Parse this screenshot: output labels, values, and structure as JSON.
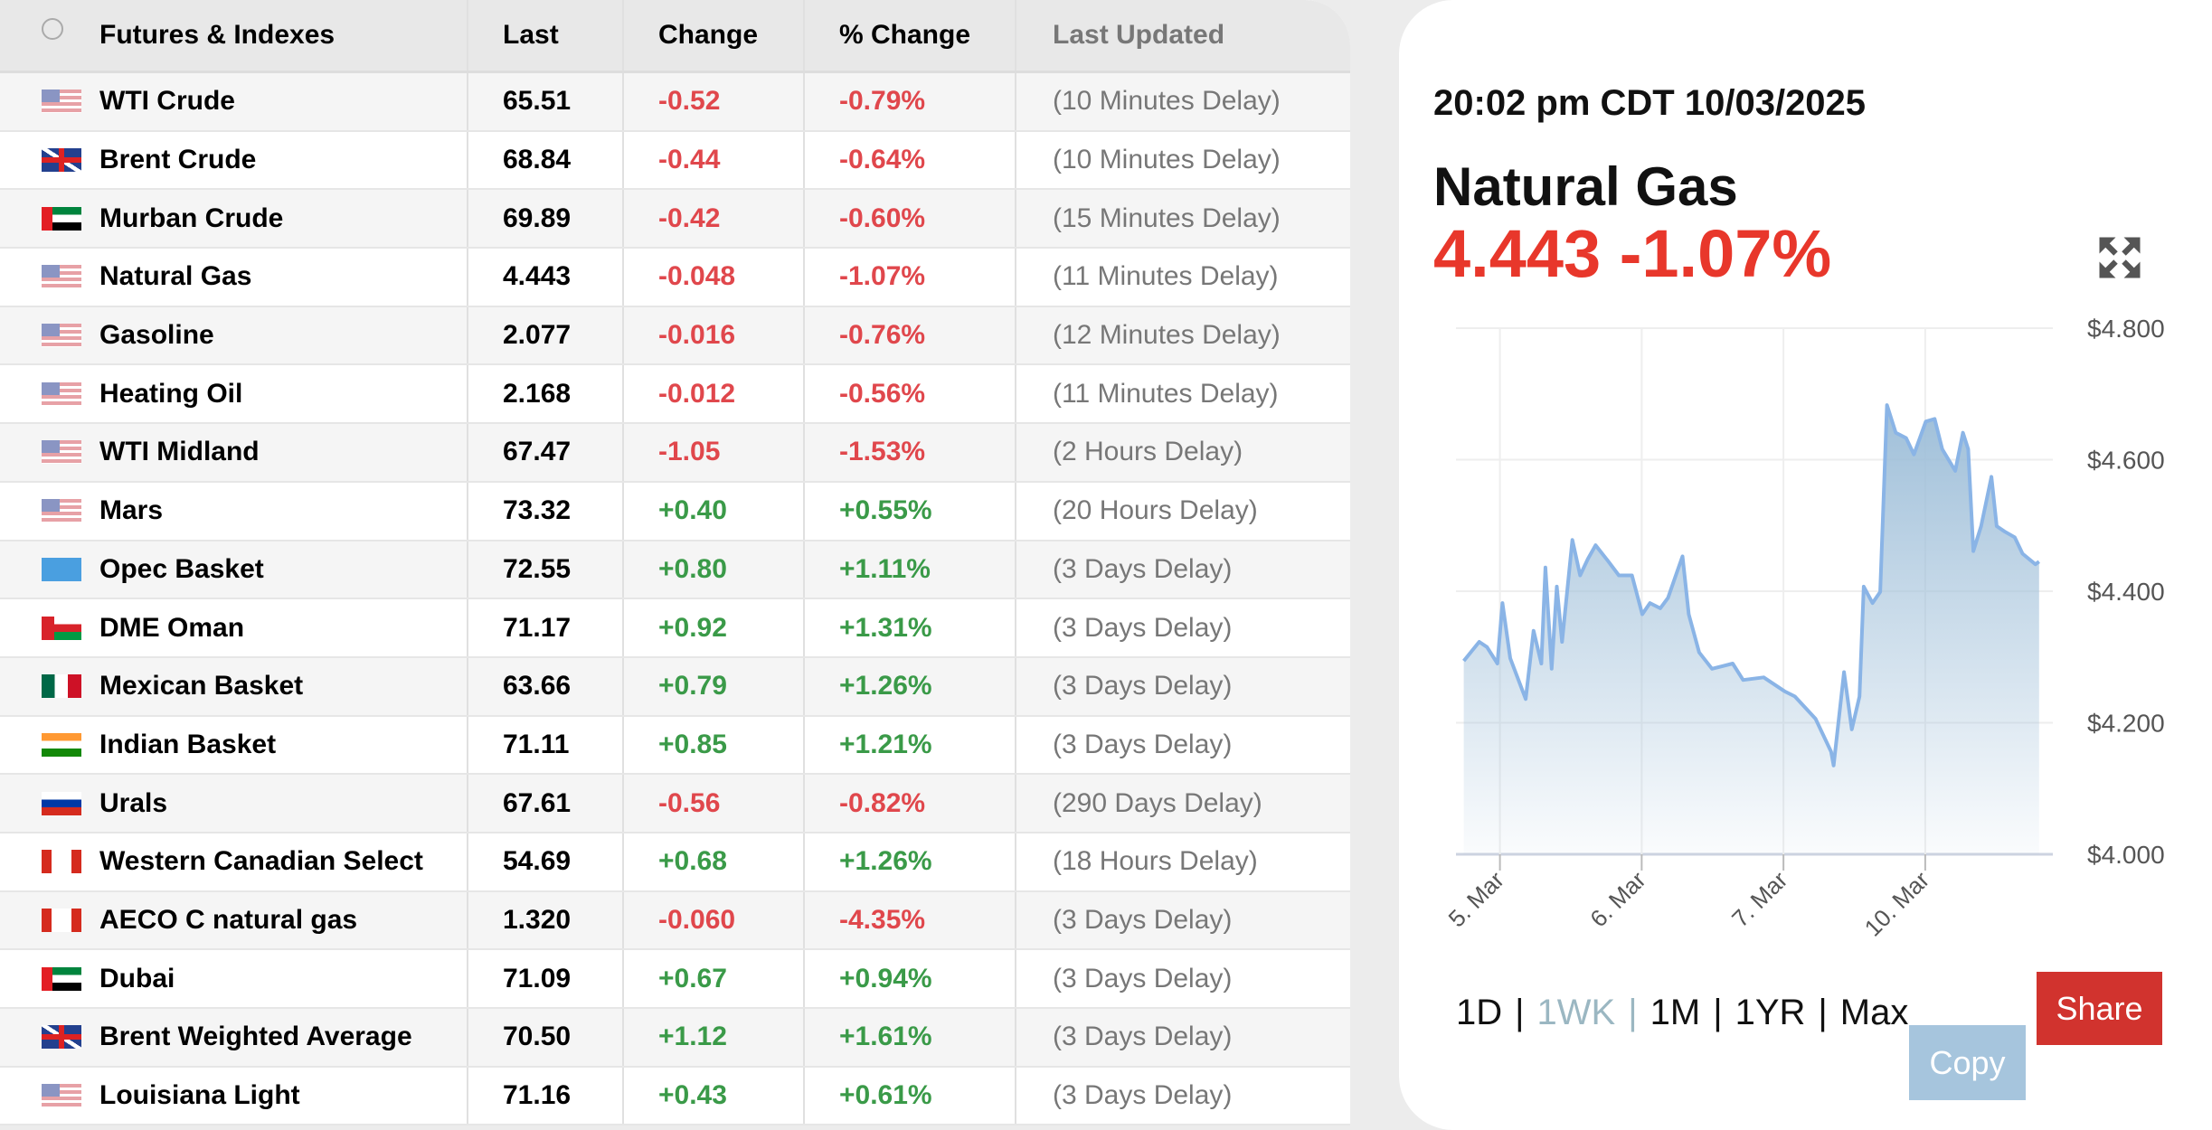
{
  "table": {
    "headers": [
      "Futures & Indexes",
      "Last",
      "Change",
      "% Change",
      "Last Updated"
    ],
    "rows": [
      {
        "name": "WTI Crude",
        "flag": "us",
        "last": "65.51",
        "change": "-0.52",
        "pct": "-0.79%",
        "updated": "(10 Minutes Delay)"
      },
      {
        "name": "Brent Crude",
        "flag": "uk",
        "last": "68.84",
        "change": "-0.44",
        "pct": "-0.64%",
        "updated": "(10 Minutes Delay)"
      },
      {
        "name": "Murban Crude",
        "flag": "ae",
        "last": "69.89",
        "change": "-0.42",
        "pct": "-0.60%",
        "updated": "(15 Minutes Delay)"
      },
      {
        "name": "Natural Gas",
        "flag": "us",
        "last": "4.443",
        "change": "-0.048",
        "pct": "-1.07%",
        "updated": "(11 Minutes Delay)"
      },
      {
        "name": "Gasoline",
        "flag": "us",
        "last": "2.077",
        "change": "-0.016",
        "pct": "-0.76%",
        "updated": "(12 Minutes Delay)"
      },
      {
        "name": "Heating Oil",
        "flag": "us",
        "last": "2.168",
        "change": "-0.012",
        "pct": "-0.56%",
        "updated": "(11 Minutes Delay)"
      },
      {
        "name": "WTI Midland",
        "flag": "us",
        "last": "67.47",
        "change": "-1.05",
        "pct": "-1.53%",
        "updated": "(2 Hours Delay)"
      },
      {
        "name": "Mars",
        "flag": "us",
        "last": "73.32",
        "change": "+0.40",
        "pct": "+0.55%",
        "updated": "(20 Hours Delay)"
      },
      {
        "name": "Opec Basket",
        "flag": "opec",
        "last": "72.55",
        "change": "+0.80",
        "pct": "+1.11%",
        "updated": "(3 Days Delay)"
      },
      {
        "name": "DME Oman",
        "flag": "om",
        "last": "71.17",
        "change": "+0.92",
        "pct": "+1.31%",
        "updated": "(3 Days Delay)"
      },
      {
        "name": "Mexican Basket",
        "flag": "mx",
        "last": "63.66",
        "change": "+0.79",
        "pct": "+1.26%",
        "updated": "(3 Days Delay)"
      },
      {
        "name": "Indian Basket",
        "flag": "in",
        "last": "71.11",
        "change": "+0.85",
        "pct": "+1.21%",
        "updated": "(3 Days Delay)"
      },
      {
        "name": "Urals",
        "flag": "ru",
        "last": "67.61",
        "change": "-0.56",
        "pct": "-0.82%",
        "updated": "(290 Days Delay)"
      },
      {
        "name": "Western Canadian Select",
        "flag": "ca",
        "last": "54.69",
        "change": "+0.68",
        "pct": "+1.26%",
        "updated": "(18 Hours Delay)"
      },
      {
        "name": "AECO C natural gas",
        "flag": "ca",
        "last": "1.320",
        "change": "-0.060",
        "pct": "-4.35%",
        "updated": "(3 Days Delay)"
      },
      {
        "name": "Dubai",
        "flag": "ae",
        "last": "71.09",
        "change": "+0.67",
        "pct": "+0.94%",
        "updated": "(3 Days Delay)"
      },
      {
        "name": "Brent Weighted Average",
        "flag": "uk",
        "last": "70.50",
        "change": "+1.12",
        "pct": "+1.61%",
        "updated": "(3 Days Delay)"
      },
      {
        "name": "Louisiana Light",
        "flag": "us",
        "last": "71.16",
        "change": "+0.43",
        "pct": "+0.61%",
        "updated": "(3 Days Delay)"
      }
    ]
  },
  "card": {
    "timestamp": "20:02 pm CDT 10/03/2025",
    "title": "Natural Gas",
    "price_line": "4.443 -1.07%",
    "ranges": [
      "1D",
      "|",
      "1WK",
      "|",
      "1M",
      "|",
      "1YR",
      "|",
      "Max"
    ],
    "selected_range": "1WK",
    "share_label": "Share",
    "copy_label": "Copy"
  },
  "colors": {
    "negative": "#e0474c",
    "positive": "#3a9a48",
    "price": "#e8372b",
    "line": "#8ab4e6",
    "share": "#d1332e",
    "copy": "#a6c5dd"
  },
  "chart_data": {
    "type": "area",
    "title": "Natural Gas",
    "xlabel": "",
    "ylabel": "",
    "xticks": [
      {
        "x": 0,
        "label": "5. Mar"
      },
      {
        "x": 1,
        "label": "6. Mar"
      },
      {
        "x": 2,
        "label": "7. Mar"
      },
      {
        "x": 3,
        "label": "10. Mar"
      }
    ],
    "yticks": [
      {
        "y": 4.0,
        "label": "$4.000"
      },
      {
        "y": 4.2,
        "label": "$4.200"
      },
      {
        "y": 4.4,
        "label": "$4.400"
      },
      {
        "y": 4.6,
        "label": "$4.600"
      },
      {
        "y": 4.8,
        "label": "$4.800"
      }
    ],
    "xlim": [
      -0.31,
      3.9
    ],
    "ylim": [
      4.0,
      4.8
    ],
    "grid": true,
    "x": [
      -0.255,
      -0.146,
      -0.091,
      -0.018,
      0.018,
      0.073,
      0.182,
      0.237,
      0.292,
      0.321,
      0.365,
      0.401,
      0.438,
      0.511,
      0.566,
      0.62,
      0.675,
      0.766,
      0.839,
      0.931,
      1.004,
      1.058,
      1.131,
      1.186,
      1.241,
      1.288,
      1.332,
      1.405,
      1.496,
      1.642,
      1.715,
      1.861,
      2.007,
      2.08,
      2.226,
      2.336,
      2.354,
      2.427,
      2.482,
      2.536,
      2.566,
      2.628,
      2.682,
      2.73,
      2.792,
      2.865,
      2.92,
      3.004,
      3.066,
      3.12,
      3.212,
      3.266,
      3.303,
      3.339,
      3.394,
      3.467,
      3.504,
      3.558,
      3.631,
      3.686,
      3.777,
      3.803
    ],
    "y": [
      4.294,
      4.323,
      4.315,
      4.29,
      4.382,
      4.298,
      4.236,
      4.34,
      4.29,
      4.436,
      4.282,
      4.407,
      4.323,
      4.478,
      4.424,
      4.449,
      4.47,
      4.445,
      4.424,
      4.424,
      4.365,
      4.382,
      4.374,
      4.39,
      4.424,
      4.453,
      4.365,
      4.307,
      4.282,
      4.29,
      4.265,
      4.269,
      4.248,
      4.24,
      4.206,
      4.156,
      4.135,
      4.277,
      4.19,
      4.24,
      4.407,
      4.382,
      4.399,
      4.683,
      4.641,
      4.633,
      4.608,
      4.658,
      4.662,
      4.616,
      4.583,
      4.641,
      4.616,
      4.461,
      4.499,
      4.574,
      4.499,
      4.491,
      4.482,
      4.457,
      4.441,
      4.445
    ]
  }
}
